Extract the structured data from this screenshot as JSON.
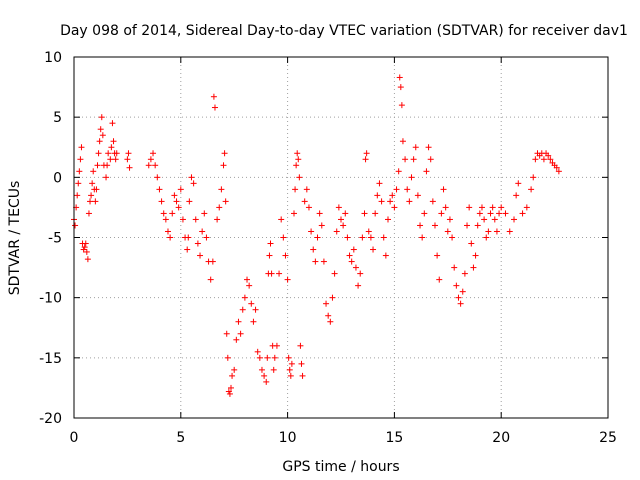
{
  "chart_data": {
    "type": "scatter",
    "title": "Day 098 of 2014, Sidereal Day-to-day VTEC variation (SDTVAR) for receiver dav1",
    "xlabel": "GPS time / hours",
    "ylabel": "SDTVAR / TECUs",
    "xlim": [
      0,
      25
    ],
    "ylim": [
      -20,
      10
    ],
    "xticks": [
      0,
      5,
      10,
      15,
      20,
      25
    ],
    "yticks": [
      -20,
      -15,
      -10,
      -5,
      0,
      5,
      10
    ],
    "grid": true,
    "marker": "+",
    "color": "#ff0000",
    "series": [
      {
        "name": "SDTVAR",
        "points": [
          [
            0.0,
            -3.5
          ],
          [
            0.05,
            -4.0
          ],
          [
            0.1,
            -2.5
          ],
          [
            0.15,
            -1.5
          ],
          [
            0.2,
            -0.5
          ],
          [
            0.25,
            0.5
          ],
          [
            0.3,
            1.5
          ],
          [
            0.35,
            2.5
          ],
          [
            0.4,
            -5.5
          ],
          [
            0.45,
            -6.0
          ],
          [
            0.5,
            -5.8
          ],
          [
            0.55,
            -5.5
          ],
          [
            0.6,
            -6.2
          ],
          [
            0.65,
            -6.8
          ],
          [
            0.7,
            -3.0
          ],
          [
            0.75,
            -2.0
          ],
          [
            0.8,
            -1.5
          ],
          [
            0.85,
            -0.5
          ],
          [
            0.9,
            0.5
          ],
          [
            0.95,
            -1.0
          ],
          [
            1.0,
            -2.0
          ],
          [
            1.05,
            -1.0
          ],
          [
            1.1,
            1.0
          ],
          [
            1.15,
            2.0
          ],
          [
            1.2,
            3.0
          ],
          [
            1.25,
            4.0
          ],
          [
            1.3,
            5.0
          ],
          [
            1.35,
            3.5
          ],
          [
            1.4,
            1.0
          ],
          [
            1.5,
            0.0
          ],
          [
            1.55,
            1.0
          ],
          [
            1.6,
            2.0
          ],
          [
            1.7,
            1.5
          ],
          [
            1.75,
            2.5
          ],
          [
            1.8,
            4.5
          ],
          [
            1.85,
            3.0
          ],
          [
            1.9,
            2.0
          ],
          [
            1.95,
            1.5
          ],
          [
            2.0,
            2.0
          ],
          [
            2.5,
            1.5
          ],
          [
            2.55,
            2.0
          ],
          [
            2.6,
            0.8
          ],
          [
            3.5,
            1.0
          ],
          [
            3.6,
            1.5
          ],
          [
            3.7,
            2.0
          ],
          [
            3.8,
            1.0
          ],
          [
            3.9,
            0.0
          ],
          [
            4.0,
            -1.0
          ],
          [
            4.1,
            -2.0
          ],
          [
            4.2,
            -3.0
          ],
          [
            4.3,
            -3.5
          ],
          [
            4.4,
            -4.5
          ],
          [
            4.5,
            -5.0
          ],
          [
            4.6,
            -3.0
          ],
          [
            4.7,
            -1.5
          ],
          [
            4.8,
            -2.0
          ],
          [
            4.9,
            -2.5
          ],
          [
            5.0,
            -1.0
          ],
          [
            5.1,
            -3.5
          ],
          [
            5.2,
            -5.0
          ],
          [
            5.3,
            -6.0
          ],
          [
            5.35,
            -5.0
          ],
          [
            5.4,
            -2.0
          ],
          [
            5.5,
            0.0
          ],
          [
            5.6,
            -0.5
          ],
          [
            5.7,
            -3.5
          ],
          [
            5.8,
            -5.5
          ],
          [
            5.9,
            -6.5
          ],
          [
            6.0,
            -4.5
          ],
          [
            6.1,
            -3.0
          ],
          [
            6.2,
            -5.0
          ],
          [
            6.3,
            -7.0
          ],
          [
            6.4,
            -8.5
          ],
          [
            6.5,
            -7.0
          ],
          [
            6.55,
            6.7
          ],
          [
            6.6,
            5.8
          ],
          [
            6.7,
            -3.5
          ],
          [
            6.8,
            -2.5
          ],
          [
            6.9,
            -1.0
          ],
          [
            7.0,
            1.0
          ],
          [
            7.05,
            2.0
          ],
          [
            7.1,
            -2.0
          ],
          [
            7.15,
            -13.0
          ],
          [
            7.2,
            -15.0
          ],
          [
            7.25,
            -17.8
          ],
          [
            7.3,
            -18.0
          ],
          [
            7.35,
            -17.5
          ],
          [
            7.4,
            -16.5
          ],
          [
            7.5,
            -16.0
          ],
          [
            7.6,
            -13.5
          ],
          [
            7.7,
            -12.0
          ],
          [
            7.8,
            -13.0
          ],
          [
            7.9,
            -11.0
          ],
          [
            8.0,
            -10.0
          ],
          [
            8.1,
            -8.5
          ],
          [
            8.2,
            -9.0
          ],
          [
            8.3,
            -10.5
          ],
          [
            8.4,
            -12.0
          ],
          [
            8.5,
            -11.0
          ],
          [
            8.6,
            -14.5
          ],
          [
            8.7,
            -15.0
          ],
          [
            8.8,
            -16.0
          ],
          [
            8.9,
            -16.5
          ],
          [
            9.0,
            -17.0
          ],
          [
            9.05,
            -15.0
          ],
          [
            9.1,
            -8.0
          ],
          [
            9.15,
            -6.5
          ],
          [
            9.2,
            -5.5
          ],
          [
            9.25,
            -8.0
          ],
          [
            9.3,
            -14.0
          ],
          [
            9.35,
            -16.0
          ],
          [
            9.4,
            -15.0
          ],
          [
            9.5,
            -14.0
          ],
          [
            9.6,
            -8.0
          ],
          [
            9.7,
            -3.5
          ],
          [
            9.8,
            -5.0
          ],
          [
            9.9,
            -6.5
          ],
          [
            10.0,
            -8.5
          ],
          [
            10.05,
            -15.0
          ],
          [
            10.1,
            -16.0
          ],
          [
            10.15,
            -16.5
          ],
          [
            10.2,
            -15.5
          ],
          [
            10.3,
            -3.0
          ],
          [
            10.35,
            -1.0
          ],
          [
            10.4,
            1.0
          ],
          [
            10.45,
            2.0
          ],
          [
            10.5,
            1.5
          ],
          [
            10.55,
            0.0
          ],
          [
            10.6,
            -14.0
          ],
          [
            10.65,
            -15.5
          ],
          [
            10.7,
            -16.5
          ],
          [
            10.8,
            -2.0
          ],
          [
            10.9,
            -1.0
          ],
          [
            11.0,
            -2.5
          ],
          [
            11.1,
            -4.5
          ],
          [
            11.2,
            -6.0
          ],
          [
            11.3,
            -7.0
          ],
          [
            11.4,
            -5.0
          ],
          [
            11.5,
            -3.0
          ],
          [
            11.6,
            -4.0
          ],
          [
            11.7,
            -7.0
          ],
          [
            11.8,
            -10.5
          ],
          [
            11.9,
            -11.5
          ],
          [
            12.0,
            -12.0
          ],
          [
            12.1,
            -10.0
          ],
          [
            12.2,
            -8.0
          ],
          [
            12.3,
            -4.5
          ],
          [
            12.4,
            -2.5
          ],
          [
            12.5,
            -3.5
          ],
          [
            12.6,
            -4.0
          ],
          [
            12.7,
            -3.0
          ],
          [
            12.8,
            -5.0
          ],
          [
            12.9,
            -6.5
          ],
          [
            13.0,
            -7.0
          ],
          [
            13.1,
            -6.0
          ],
          [
            13.2,
            -7.5
          ],
          [
            13.3,
            -9.0
          ],
          [
            13.4,
            -8.0
          ],
          [
            13.5,
            -5.0
          ],
          [
            13.6,
            -3.0
          ],
          [
            13.65,
            1.5
          ],
          [
            13.7,
            2.0
          ],
          [
            13.8,
            -4.5
          ],
          [
            13.9,
            -5.0
          ],
          [
            14.0,
            -6.0
          ],
          [
            14.1,
            -3.0
          ],
          [
            14.2,
            -1.5
          ],
          [
            14.3,
            -0.5
          ],
          [
            14.4,
            -2.0
          ],
          [
            14.5,
            -5.0
          ],
          [
            14.6,
            -6.5
          ],
          [
            14.7,
            -3.5
          ],
          [
            14.8,
            -2.0
          ],
          [
            14.9,
            -1.5
          ],
          [
            15.0,
            -2.5
          ],
          [
            15.1,
            -1.0
          ],
          [
            15.2,
            0.5
          ],
          [
            15.25,
            8.3
          ],
          [
            15.3,
            7.5
          ],
          [
            15.35,
            6.0
          ],
          [
            15.4,
            3.0
          ],
          [
            15.5,
            1.5
          ],
          [
            15.6,
            -1.0
          ],
          [
            15.7,
            -2.0
          ],
          [
            15.8,
            0.0
          ],
          [
            15.9,
            1.5
          ],
          [
            16.0,
            2.5
          ],
          [
            16.1,
            -1.5
          ],
          [
            16.2,
            -4.0
          ],
          [
            16.3,
            -5.0
          ],
          [
            16.4,
            -3.0
          ],
          [
            16.5,
            0.5
          ],
          [
            16.6,
            2.5
          ],
          [
            16.7,
            1.5
          ],
          [
            16.8,
            -2.0
          ],
          [
            16.9,
            -4.0
          ],
          [
            17.0,
            -6.5
          ],
          [
            17.1,
            -8.5
          ],
          [
            17.2,
            -3.0
          ],
          [
            17.3,
            -1.0
          ],
          [
            17.4,
            -2.5
          ],
          [
            17.5,
            -4.5
          ],
          [
            17.6,
            -3.5
          ],
          [
            17.7,
            -5.0
          ],
          [
            17.8,
            -7.5
          ],
          [
            17.9,
            -9.0
          ],
          [
            18.0,
            -10.0
          ],
          [
            18.1,
            -10.5
          ],
          [
            18.2,
            -9.5
          ],
          [
            18.3,
            -8.0
          ],
          [
            18.4,
            -4.0
          ],
          [
            18.5,
            -2.5
          ],
          [
            18.6,
            -5.5
          ],
          [
            18.7,
            -7.5
          ],
          [
            18.8,
            -6.5
          ],
          [
            18.9,
            -4.0
          ],
          [
            19.0,
            -3.0
          ],
          [
            19.1,
            -2.5
          ],
          [
            19.2,
            -3.5
          ],
          [
            19.3,
            -5.0
          ],
          [
            19.4,
            -4.5
          ],
          [
            19.5,
            -3.0
          ],
          [
            19.6,
            -2.5
          ],
          [
            19.7,
            -3.5
          ],
          [
            19.8,
            -4.5
          ],
          [
            19.9,
            -3.0
          ],
          [
            20.0,
            -2.5
          ],
          [
            20.2,
            -3.0
          ],
          [
            20.4,
            -4.5
          ],
          [
            20.6,
            -3.5
          ],
          [
            20.7,
            -1.5
          ],
          [
            20.8,
            -0.5
          ],
          [
            21.0,
            -3.0
          ],
          [
            21.2,
            -2.5
          ],
          [
            21.4,
            -1.0
          ],
          [
            21.5,
            0.0
          ],
          [
            21.6,
            1.5
          ],
          [
            21.7,
            2.0
          ],
          [
            21.8,
            1.8
          ],
          [
            21.9,
            2.0
          ],
          [
            22.0,
            1.5
          ],
          [
            22.1,
            2.0
          ],
          [
            22.2,
            1.8
          ],
          [
            22.3,
            1.5
          ],
          [
            22.4,
            1.2
          ],
          [
            22.5,
            1.0
          ],
          [
            22.6,
            0.8
          ],
          [
            22.7,
            0.5
          ]
        ]
      }
    ]
  }
}
